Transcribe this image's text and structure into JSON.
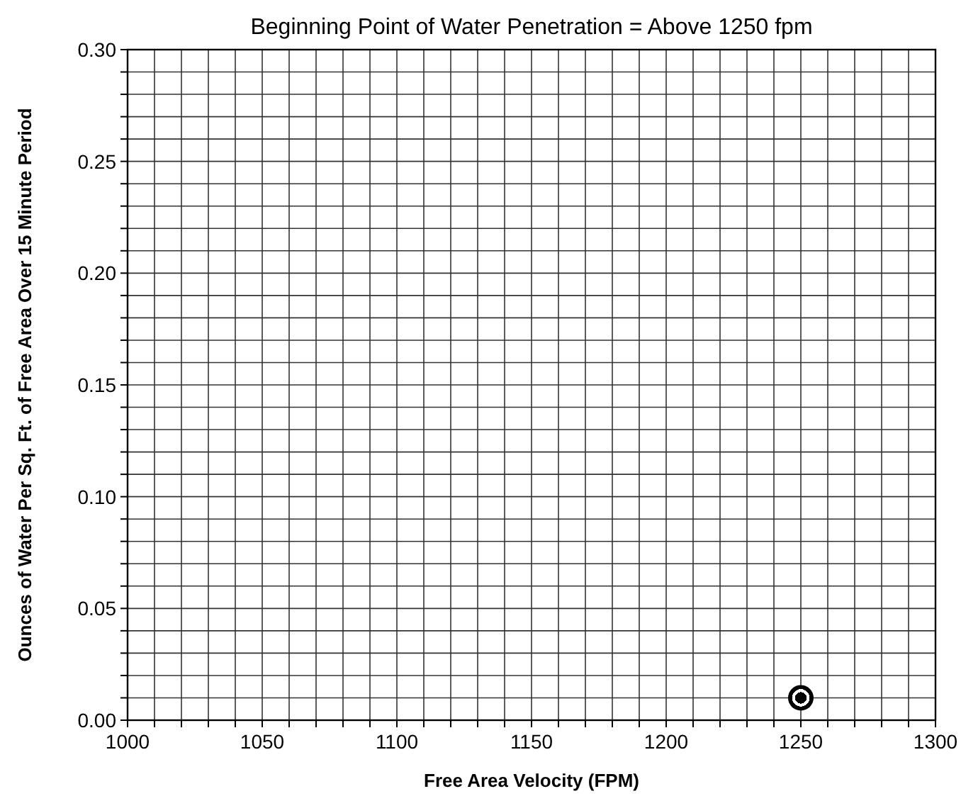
{
  "chart_data": {
    "type": "scatter",
    "title": "Beginning Point of Water Penetration = Above 1250 fpm",
    "xlabel": "Free Area Velocity (FPM)",
    "ylabel": "Ounces of Water Per Sq. Ft. of Free Area Over 15 Minute Period",
    "x": [
      1250
    ],
    "values": [
      0.01
    ],
    "color": "#000000",
    "marker": "circle",
    "grid": true,
    "xlim": [
      1000,
      1300
    ],
    "ylim": [
      0,
      0.3
    ],
    "xticks": [
      1000,
      {
        "value": 1010,
        "label": null
      },
      {
        "value": 1020,
        "label": null
      },
      {
        "value": 1030,
        "label": null
      },
      {
        "value": 1040,
        "label": null
      },
      1050,
      {
        "value": 1060,
        "label": null
      },
      {
        "value": 1070,
        "label": null
      },
      {
        "value": 1080,
        "label": null
      },
      {
        "value": 1090,
        "label": null
      },
      1100,
      {
        "value": 1110,
        "label": null
      },
      {
        "value": 1120,
        "label": null
      },
      {
        "value": 1130,
        "label": null
      },
      {
        "value": 1140,
        "label": null
      },
      1150,
      {
        "value": 1160,
        "label": null
      },
      {
        "value": 1170,
        "label": null
      },
      {
        "value": 1180,
        "label": null
      },
      {
        "value": 1190,
        "label": null
      },
      1200,
      {
        "value": 1210,
        "label": null
      },
      {
        "value": 1220,
        "label": null
      },
      {
        "value": 1230,
        "label": null
      },
      {
        "value": 1240,
        "label": null
      },
      1250,
      {
        "value": 1260,
        "label": null
      },
      {
        "value": 1270,
        "label": null
      },
      {
        "value": 1280,
        "label": null
      },
      {
        "value": 1290,
        "label": null
      },
      1300
    ],
    "yticks": [
      {
        "value": 0,
        "label": "0.00"
      },
      {
        "value": 0.01,
        "label": null
      },
      {
        "value": 0.02,
        "label": null
      },
      {
        "value": 0.03,
        "label": null
      },
      {
        "value": 0.04,
        "label": null
      },
      {
        "value": 0.05,
        "label": "0.05"
      },
      {
        "value": 0.06,
        "label": null
      },
      {
        "value": 0.07,
        "label": null
      },
      {
        "value": 0.08,
        "label": null
      },
      {
        "value": 0.09,
        "label": null
      },
      {
        "value": 0.1,
        "label": "0.10"
      },
      {
        "value": 0.11,
        "label": null
      },
      {
        "value": 0.12,
        "label": null
      },
      {
        "value": 0.13,
        "label": null
      },
      {
        "value": 0.14,
        "label": null
      },
      {
        "value": 0.15,
        "label": "0.15"
      },
      {
        "value": 0.16,
        "label": null
      },
      {
        "value": 0.17,
        "label": null
      },
      {
        "value": 0.18,
        "label": null
      },
      {
        "value": 0.19,
        "label": null
      },
      {
        "value": 0.2,
        "label": "0.20"
      },
      {
        "value": 0.21,
        "label": null
      },
      {
        "value": 0.22,
        "label": null
      },
      {
        "value": 0.23,
        "label": null
      },
      {
        "value": 0.24,
        "label": null
      },
      {
        "value": 0.25,
        "label": "0.25"
      },
      {
        "value": 0.26,
        "label": null
      },
      {
        "value": 0.27,
        "label": null
      },
      {
        "value": 0.28,
        "label": null
      },
      {
        "value": 0.29,
        "label": null
      },
      {
        "value": 0.3,
        "label": "0.30"
      }
    ]
  }
}
